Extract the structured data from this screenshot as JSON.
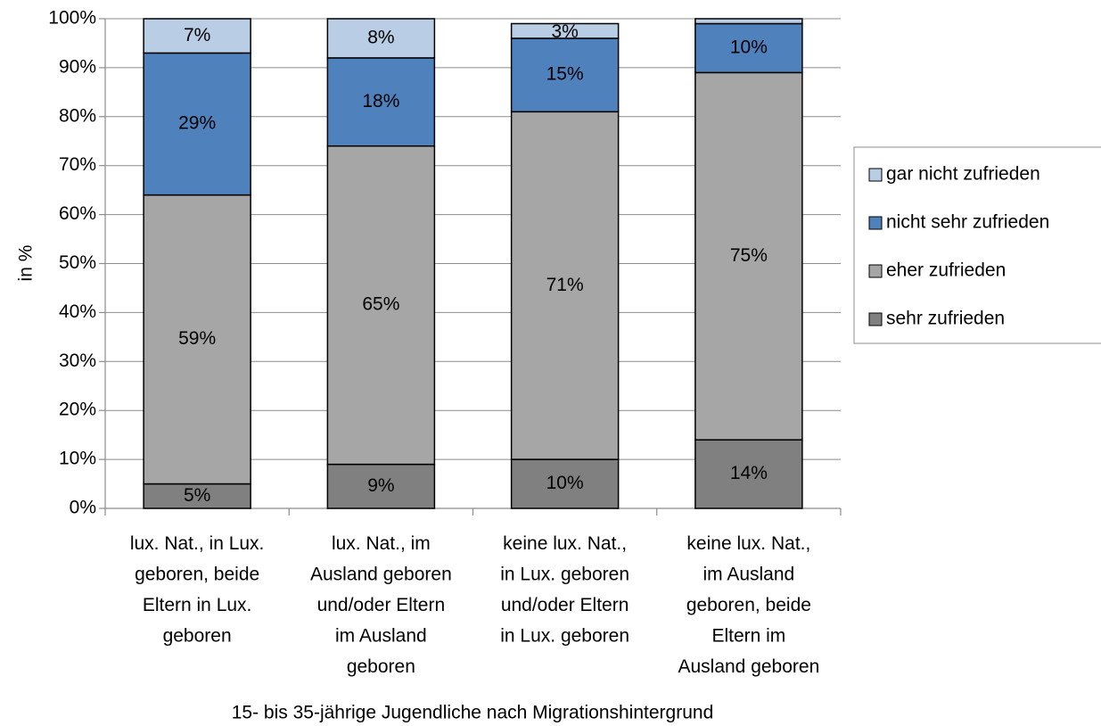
{
  "chart_data": {
    "type": "stacked_bar",
    "x_label": "15- bis 35-jährige Jugendliche nach Migrationshintergrund",
    "y_label": "in %",
    "categories": [
      "lux. Nat., in Lux.\ngeboren, beide\nEltern in Lux.\ngeboren",
      "lux. Nat., im\nAusland geboren\nund/oder Eltern\nim Ausland\ngeboren",
      "keine lux. Nat.,\nin Lux. geboren\nund/oder Eltern\nin Lux. geboren",
      "keine lux. Nat.,\nim Ausland\ngeboren, beide\nEltern im\nAusland geboren"
    ],
    "series": [
      {
        "name": "sehr zufrieden",
        "color": "#808080",
        "values": [
          5,
          9,
          10,
          14
        ],
        "value_labels": [
          "5%",
          "9%",
          "10%",
          "14%"
        ]
      },
      {
        "name": "eher zufrieden",
        "color": "#a6a6a6",
        "values": [
          59,
          65,
          71,
          75
        ],
        "value_labels": [
          "59%",
          "65%",
          "71%",
          "75%"
        ]
      },
      {
        "name": "nicht sehr zufrieden",
        "color": "#4f81bd",
        "values": [
          29,
          18,
          15,
          10
        ],
        "value_labels": [
          "29%",
          "18%",
          "15%",
          "10%"
        ]
      },
      {
        "name": "gar nicht zufrieden",
        "color": "#b9cde5",
        "values": [
          7,
          8,
          3,
          1
        ],
        "value_labels": [
          "7%",
          "8%",
          "3%",
          null
        ]
      }
    ],
    "ylim": [
      0,
      100
    ],
    "yticks": [
      {
        "value": 0,
        "label": "0%"
      },
      {
        "value": 10,
        "label": "10%"
      },
      {
        "value": 20,
        "label": "20%"
      },
      {
        "value": 30,
        "label": "30%"
      },
      {
        "value": 40,
        "label": "40%"
      },
      {
        "value": 50,
        "label": "50%"
      },
      {
        "value": 60,
        "label": "60%"
      },
      {
        "value": 70,
        "label": "70%"
      },
      {
        "value": 80,
        "label": "80%"
      },
      {
        "value": 90,
        "label": "90%"
      },
      {
        "value": 100,
        "label": "100%"
      }
    ],
    "grid": true,
    "legend": "right"
  }
}
